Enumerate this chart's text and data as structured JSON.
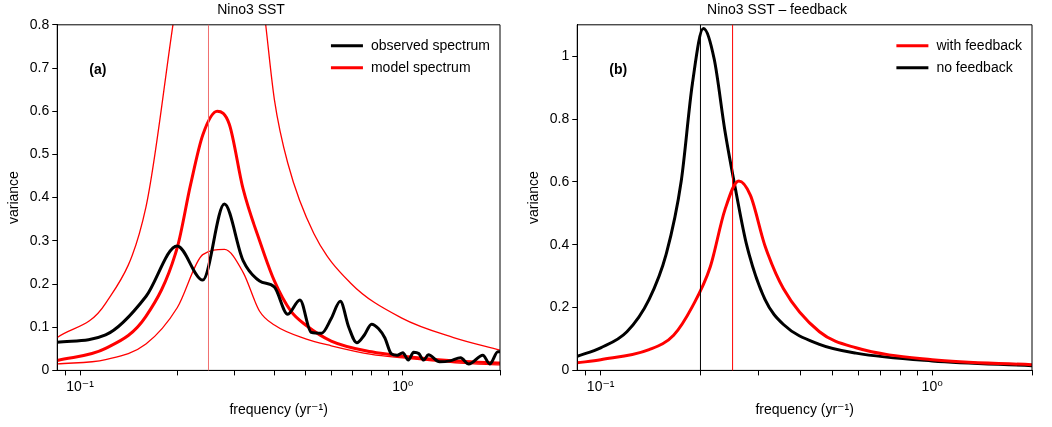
{
  "chart_data": [
    {
      "type": "line",
      "title": "Nino3 SST",
      "xlabel": "frequency (yr⁻¹)",
      "ylabel": "variance",
      "annotations": [
        "(a)"
      ],
      "log": "x",
      "grid": false,
      "legend": "top right",
      "marker": "none",
      "line_style": "solid",
      "xlim": [
        0.085,
        2
      ],
      "xticks": [
        {
          "value": 0.09,
          "label": null
        },
        {
          "value": 0.1,
          "label": "10⁻¹"
        },
        {
          "value": 0.2,
          "label": null
        },
        {
          "value": 0.3,
          "label": null
        },
        {
          "value": 0.4,
          "label": null
        },
        {
          "value": 0.5,
          "label": null
        },
        {
          "value": 0.6,
          "label": null
        },
        {
          "value": 0.7,
          "label": null
        },
        {
          "value": 0.8,
          "label": null
        },
        {
          "value": 0.9,
          "label": null
        },
        {
          "value": 1,
          "label": "10⁰"
        },
        {
          "value": 2,
          "label": null
        }
      ],
      "ylim": [
        0,
        0.8
      ],
      "yticks": [
        0,
        0.1,
        0.2,
        0.3,
        0.4,
        0.5,
        0.6,
        0.7,
        0.8
      ],
      "ref_lines": [
        {
          "axis": "x",
          "value": 0.25,
          "color": "#f07070"
        }
      ],
      "series": [
        {
          "name": "observed spectrum",
          "color": "#000000",
          "x": [
            0.085,
            0.12,
            0.16,
            0.2,
            0.24,
            0.28,
            0.32,
            0.36,
            0.4,
            0.44,
            0.48,
            0.52,
            0.56,
            0.6,
            0.64,
            0.68,
            0.72,
            0.76,
            0.8,
            0.84,
            0.88,
            0.92,
            0.96,
            1.0,
            1.04,
            1.08,
            1.12,
            1.16,
            1.2,
            1.3,
            1.4,
            1.51,
            1.6,
            1.77,
            1.86,
            1.97,
            2.0
          ],
          "values": [
            0.065,
            0.082,
            0.171,
            0.288,
            0.209,
            0.385,
            0.254,
            0.207,
            0.193,
            0.13,
            0.163,
            0.088,
            0.086,
            0.12,
            0.16,
            0.1,
            0.064,
            0.082,
            0.107,
            0.097,
            0.075,
            0.039,
            0.035,
            0.041,
            0.024,
            0.042,
            0.039,
            0.024,
            0.036,
            0.02,
            0.022,
            0.029,
            0.015,
            0.035,
            0.015,
            0.043,
            0.043
          ]
        },
        {
          "name": "model spectrum",
          "color": "#ff0000",
          "x": [
            0.085,
            0.12,
            0.16,
            0.2,
            0.22,
            0.24,
            0.266,
            0.29,
            0.32,
            0.36,
            0.4,
            0.45,
            0.5,
            0.6,
            0.8,
            1.0,
            1.5,
            2.0
          ],
          "values": [
            0.023,
            0.051,
            0.125,
            0.284,
            0.43,
            0.545,
            0.6,
            0.57,
            0.42,
            0.3,
            0.207,
            0.137,
            0.105,
            0.068,
            0.043,
            0.033,
            0.021,
            0.017
          ]
        },
        {
          "color": "#ff0000",
          "x": [
            0.085,
            0.12,
            0.16,
            0.194,
            0.28,
            0.376,
            0.4,
            0.44,
            0.53,
            0.687,
            0.993,
            1.436,
            2.0
          ],
          "values": [
            0.076,
            0.155,
            0.378,
            0.8,
            null,
            0.8,
            0.627,
            0.48,
            0.317,
            0.203,
            0.121,
            0.076,
            0.047
          ]
        },
        {
          "color": "#ff0000",
          "x": [
            0.085,
            0.12,
            0.16,
            0.2,
            0.24,
            0.28,
            0.32,
            0.36,
            0.4,
            0.5,
            0.6,
            0.8,
            1.0,
            1.5,
            2.0
          ],
          "values": [
            0.015,
            0.025,
            0.061,
            0.145,
            0.268,
            0.28,
            0.227,
            0.137,
            0.105,
            0.073,
            0.057,
            0.037,
            0.029,
            0.017,
            0.013
          ]
        }
      ]
    },
    {
      "type": "line",
      "title": "Nino3 SST – feedback",
      "xlabel": "frequency (yr⁻¹)",
      "ylabel": "variance",
      "annotations": [
        "(b)"
      ],
      "log": "x",
      "grid": false,
      "legend": "top right",
      "marker": "none",
      "line_style": "solid",
      "xlim": [
        0.085,
        2
      ],
      "xticks": [
        {
          "value": 0.09,
          "label": null
        },
        {
          "value": 0.1,
          "label": "10⁻¹"
        },
        {
          "value": 0.2,
          "label": null
        },
        {
          "value": 0.3,
          "label": null
        },
        {
          "value": 0.4,
          "label": null
        },
        {
          "value": 0.5,
          "label": null
        },
        {
          "value": 0.6,
          "label": null
        },
        {
          "value": 0.7,
          "label": null
        },
        {
          "value": 0.8,
          "label": null
        },
        {
          "value": 0.9,
          "label": null
        },
        {
          "value": 1,
          "label": "10⁰"
        },
        {
          "value": 2,
          "label": null
        }
      ],
      "ylim": [
        0,
        1.1
      ],
      "yticks": [
        0,
        0.2,
        0.4,
        0.6,
        0.8,
        1
      ],
      "ref_lines": [
        {
          "axis": "x",
          "value": 0.2,
          "color": "#000000"
        },
        {
          "axis": "x",
          "value": 0.25,
          "color": "#ff0000"
        }
      ],
      "series": [
        {
          "name": "with feedback",
          "color": "#ff0000",
          "x": [
            0.085,
            0.1,
            0.14,
            0.166,
            0.189,
            0.214,
            0.237,
            0.261,
            0.283,
            0.313,
            0.356,
            0.457,
            0.589,
            1.0,
            2.0
          ],
          "values": [
            0.024,
            0.034,
            0.066,
            0.112,
            0.203,
            0.329,
            0.511,
            0.603,
            0.557,
            0.397,
            0.26,
            0.123,
            0.072,
            0.034,
            0.018
          ]
        },
        {
          "name": "no feedback",
          "color": "#000000",
          "x": [
            0.085,
            0.1,
            0.12,
            0.14,
            0.158,
            0.175,
            0.189,
            0.204,
            0.22,
            0.237,
            0.256,
            0.276,
            0.313,
            0.356,
            0.457,
            0.589,
            1.0,
            2.0
          ],
          "values": [
            0.045,
            0.072,
            0.123,
            0.226,
            0.374,
            0.603,
            0.911,
            1.088,
            0.991,
            0.763,
            0.568,
            0.397,
            0.226,
            0.146,
            0.083,
            0.055,
            0.03,
            0.015
          ]
        }
      ]
    }
  ]
}
